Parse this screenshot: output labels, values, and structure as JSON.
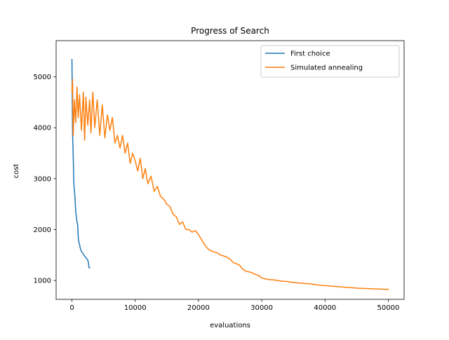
{
  "chart_data": {
    "type": "line",
    "title": "Progress of Search",
    "xlabel": "evaluations",
    "ylabel": "cost",
    "xlim": [
      -2500,
      52500
    ],
    "ylim": [
      630,
      5710
    ],
    "xticks": [
      0,
      10000,
      20000,
      30000,
      40000,
      50000
    ],
    "xtick_labels": [
      "0",
      "10000",
      "20000",
      "30000",
      "40000",
      "50000"
    ],
    "yticks": [
      1000,
      2000,
      3000,
      4000,
      5000
    ],
    "ytick_labels": [
      "1000",
      "2000",
      "3000",
      "4000",
      "5000"
    ],
    "grid": false,
    "legend_position": "top-right",
    "series": [
      {
        "name": "First choice",
        "color": "#1f77b4",
        "x": [
          0,
          50,
          100,
          200,
          300,
          400,
          500,
          600,
          700,
          800,
          900,
          1000,
          1100,
          1200,
          1400,
          1600,
          1800,
          2000,
          2200,
          2400,
          2500,
          2600,
          2700,
          2800
        ],
        "y": [
          5340,
          4600,
          3900,
          3450,
          2900,
          2750,
          2600,
          2350,
          2250,
          2150,
          2100,
          1850,
          1750,
          1700,
          1600,
          1550,
          1520,
          1480,
          1450,
          1420,
          1400,
          1350,
          1250,
          1250
        ]
      },
      {
        "name": "Simulated annealing",
        "color": "#ff7f0e",
        "x": [
          0,
          100,
          200,
          400,
          600,
          800,
          1000,
          1200,
          1500,
          1800,
          2000,
          2200,
          2500,
          2800,
          3000,
          3300,
          3600,
          4000,
          4400,
          4800,
          5200,
          5600,
          6000,
          6400,
          6800,
          7200,
          7600,
          8000,
          8400,
          8800,
          9200,
          9600,
          10000,
          10400,
          10800,
          11200,
          11600,
          12000,
          12500,
          13000,
          13500,
          14000,
          14500,
          15000,
          15500,
          16000,
          16500,
          17000,
          17500,
          18000,
          18500,
          19000,
          19500,
          20000,
          20500,
          21000,
          21500,
          22000,
          22500,
          23000,
          23500,
          24000,
          24500,
          25000,
          25500,
          26000,
          26500,
          27000,
          27500,
          28000,
          28500,
          29000,
          29500,
          30000,
          31000,
          32000,
          33000,
          34000,
          35000,
          36000,
          37000,
          38000,
          39000,
          40000,
          41000,
          42000,
          43000,
          44000,
          45000,
          46000,
          47000,
          48000,
          49000,
          50000
        ],
        "y": [
          4700,
          4950,
          3850,
          4550,
          4100,
          4800,
          4200,
          4650,
          3950,
          4700,
          3750,
          4600,
          4050,
          4550,
          3900,
          4700,
          4000,
          4550,
          3850,
          4450,
          3800,
          4250,
          3950,
          4200,
          3700,
          3850,
          3600,
          3850,
          3500,
          3700,
          3300,
          3500,
          3350,
          3150,
          3400,
          3000,
          3200,
          2900,
          3050,
          2750,
          2850,
          2650,
          2600,
          2500,
          2450,
          2300,
          2250,
          2100,
          2150,
          2000,
          2000,
          1950,
          1980,
          1900,
          1800,
          1700,
          1620,
          1580,
          1560,
          1540,
          1500,
          1480,
          1460,
          1420,
          1350,
          1330,
          1300,
          1220,
          1180,
          1170,
          1150,
          1120,
          1100,
          1050,
          1020,
          1010,
          990,
          980,
          960,
          950,
          940,
          930,
          910,
          900,
          890,
          880,
          870,
          860,
          850,
          845,
          840,
          835,
          830,
          825
        ]
      }
    ]
  }
}
